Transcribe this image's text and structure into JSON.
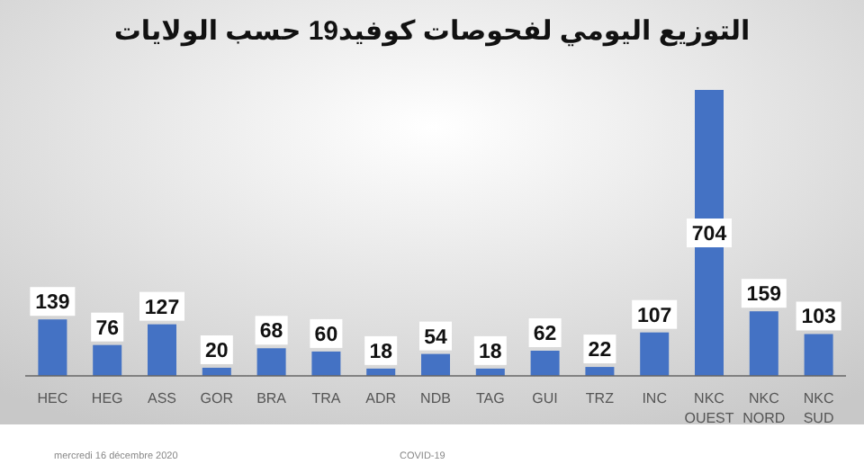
{
  "chart_data": {
    "type": "bar",
    "title": "التوزيع اليومي لفحوصات كوفيد19 حسب الولايات",
    "categories": [
      "HEC",
      "HEG",
      "ASS",
      "GOR",
      "BRA",
      "TRA",
      "ADR",
      "NDB",
      "TAG",
      "GUI",
      "TRZ",
      "INC",
      "NKC OUEST",
      "NKC NORD",
      "NKC SUD"
    ],
    "values": [
      139,
      76,
      127,
      20,
      68,
      60,
      18,
      54,
      18,
      62,
      22,
      107,
      704,
      159,
      103
    ],
    "color": "#4472c4",
    "data_labels": true,
    "annotations": [
      "mercredi 16 décembre 2020",
      "COVID-19"
    ]
  }
}
